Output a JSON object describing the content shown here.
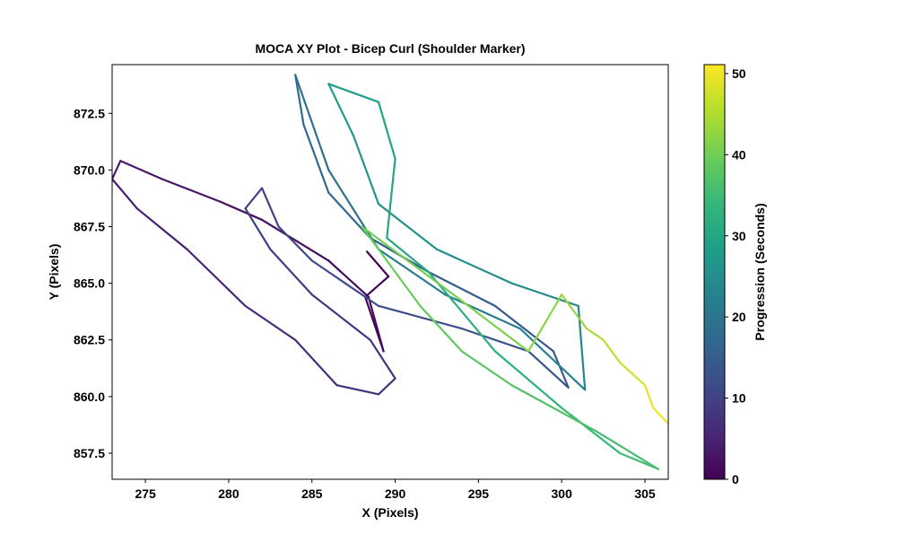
{
  "chart_data": {
    "type": "colored_line",
    "title": "MOCA XY Plot - Bicep Curl (Shoulder Marker)",
    "x_label": "X (Pixels)",
    "y_label": "Y (Pixels)",
    "colorbar_label": "Progression (Seconds)",
    "colormap": "viridis",
    "xlim": [
      273.0,
      306.4
    ],
    "ylim": [
      856.35,
      874.65
    ],
    "clim": [
      0,
      51.1
    ],
    "xticks": [
      275,
      280,
      285,
      290,
      295,
      300,
      305
    ],
    "yticks": [
      857.5,
      {
        "value": 860,
        "label": "860.0"
      },
      862.5,
      {
        "value": 865,
        "label": "865.0"
      },
      867.5,
      {
        "value": 870,
        "label": "870.0"
      },
      872.5
    ],
    "cticks": [
      0,
      10,
      20,
      30,
      40,
      50
    ],
    "x": [
      288.3,
      289.6,
      288.2,
      289.3,
      288.4,
      286.0,
      282.0,
      279.5,
      276.0,
      273.5,
      273.0,
      274.5,
      277.5,
      281.0,
      284.0,
      286.5,
      289.0,
      290.0,
      288.5,
      285.0,
      282.5,
      281.0,
      282.0,
      283.0,
      285.0,
      289.0,
      294.0,
      298.0,
      300.4,
      299.5,
      296.0,
      292.0,
      288.5,
      286.0,
      284.5,
      284.0,
      286.0,
      289.0,
      293.0,
      297.5,
      301.4,
      301.0,
      297.0,
      292.5,
      289.0,
      287.5,
      286.0,
      289.0,
      290.0,
      289.5,
      292.0,
      296.0,
      300.0,
      303.5,
      305.8,
      302.0,
      297.0,
      294.0,
      291.5,
      288.0,
      293.5,
      298.0,
      300.0,
      301.5,
      302.5,
      303.5,
      305.0,
      305.5,
      306.4
    ],
    "y": [
      866.4,
      865.3,
      864.4,
      862.0,
      864.4,
      866.0,
      867.8,
      868.6,
      869.6,
      870.4,
      869.6,
      868.3,
      866.5,
      864.0,
      862.5,
      860.5,
      860.1,
      860.8,
      862.5,
      864.5,
      866.5,
      868.3,
      869.2,
      867.5,
      866.0,
      864.0,
      863.0,
      862.0,
      860.4,
      862.0,
      864.0,
      865.5,
      867.0,
      869.0,
      872.0,
      874.2,
      870.0,
      866.5,
      864.5,
      863.0,
      860.3,
      864.0,
      865.0,
      866.5,
      868.5,
      871.5,
      873.8,
      873.0,
      870.5,
      867.0,
      865.5,
      862.0,
      859.5,
      857.5,
      856.8,
      858.5,
      860.5,
      862.0,
      864.0,
      867.5,
      864.5,
      862.0,
      864.5,
      863.0,
      862.5,
      861.5,
      860.5,
      859.5,
      858.8
    ],
    "t": [
      0,
      0.4,
      0.8,
      1.2,
      1.6,
      2.0,
      2.6,
      3.0,
      3.5,
      3.9,
      4.2,
      4.6,
      5.2,
      6.0,
      6.6,
      7.2,
      7.6,
      7.9,
      8.3,
      8.9,
      9.4,
      9.8,
      10.2,
      10.6,
      11.2,
      12.0,
      12.8,
      13.4,
      13.9,
      14.3,
      15.0,
      15.8,
      16.6,
      17.3,
      18.0,
      18.5,
      19.5,
      20.5,
      21.5,
      22.5,
      23.5,
      24.3,
      25.2,
      26.2,
      27.0,
      27.8,
      28.5,
      29.3,
      30.0,
      31.0,
      32.0,
      33.0,
      34.2,
      35.3,
      36.0,
      36.8,
      37.8,
      38.5,
      39.2,
      40.0,
      41.0,
      42.0,
      43.0,
      44.5,
      46.0,
      47.5,
      49.0,
      50.0,
      51.0
    ]
  }
}
